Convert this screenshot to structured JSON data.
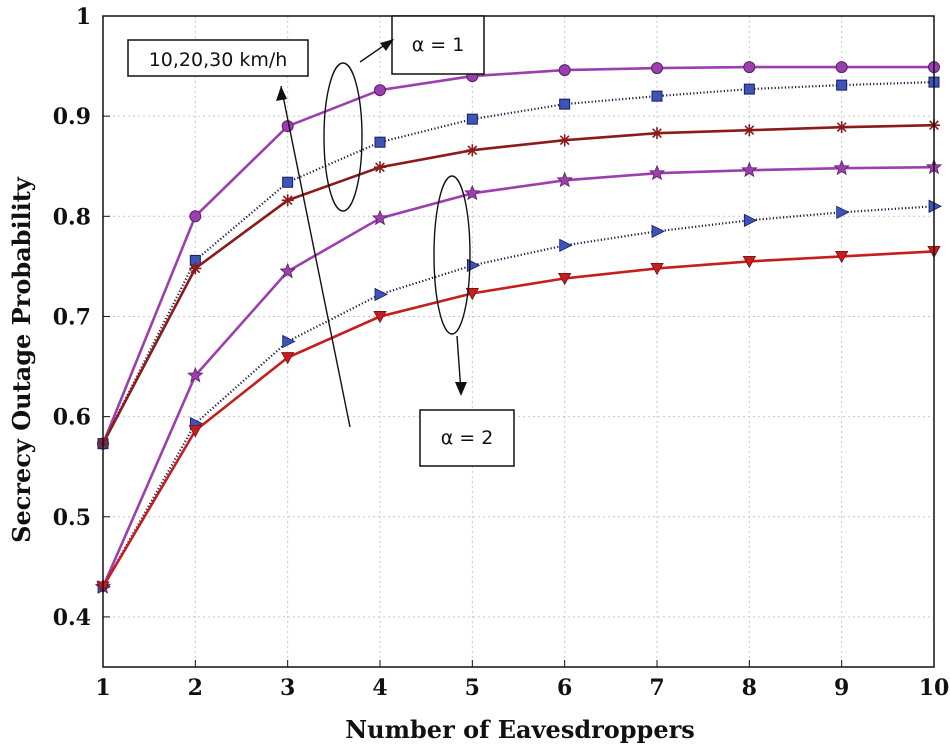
{
  "chart_data": {
    "type": "line",
    "title": "",
    "xlabel": "Number of Eavesdroppers",
    "ylabel": "Secrecy Outage Probability",
    "xlim": [
      1,
      10
    ],
    "ylim": [
      0.35,
      1.0
    ],
    "xticks": [
      1,
      2,
      3,
      4,
      5,
      6,
      7,
      8,
      9,
      10
    ],
    "yticks": [
      0.4,
      0.5,
      0.6,
      0.7,
      0.8,
      0.9,
      1.0
    ],
    "ytick_labels": [
      "0.4",
      "0.5",
      "0.6",
      "0.7",
      "0.8",
      "0.9",
      "1"
    ],
    "grid": true,
    "legend": "none",
    "x": [
      1,
      2,
      3,
      4,
      5,
      6,
      7,
      8,
      9,
      10
    ],
    "series": [
      {
        "group": "alpha1",
        "color": "#9b3fae",
        "marker": "circle",
        "dotted": false,
        "values": [
          0.573,
          0.8,
          0.89,
          0.926,
          0.94,
          0.946,
          0.948,
          0.949,
          0.949,
          0.949
        ]
      },
      {
        "group": "alpha1",
        "color": "#33338f",
        "marker": "square",
        "dotted": true,
        "values": [
          0.573,
          0.756,
          0.834,
          0.874,
          0.897,
          0.912,
          0.92,
          0.927,
          0.931,
          0.934
        ]
      },
      {
        "group": "alpha1",
        "color": "#8b1a1a",
        "marker": "asterisk",
        "dotted": false,
        "values": [
          0.573,
          0.748,
          0.816,
          0.849,
          0.866,
          0.876,
          0.883,
          0.886,
          0.889,
          0.891
        ]
      },
      {
        "group": "alpha2",
        "color": "#9b3fae",
        "marker": "star",
        "dotted": false,
        "values": [
          0.43,
          0.641,
          0.745,
          0.798,
          0.823,
          0.836,
          0.843,
          0.846,
          0.848,
          0.849
        ]
      },
      {
        "group": "alpha2",
        "color": "#33338f",
        "marker": "triangle-right",
        "dotted": true,
        "values": [
          0.43,
          0.593,
          0.675,
          0.722,
          0.751,
          0.771,
          0.785,
          0.796,
          0.804,
          0.81
        ]
      },
      {
        "group": "alpha2",
        "color": "#c41e1e",
        "marker": "triangle-down",
        "dotted": false,
        "values": [
          0.43,
          0.586,
          0.659,
          0.7,
          0.723,
          0.738,
          0.748,
          0.755,
          0.76,
          0.765
        ]
      }
    ],
    "annotations": {
      "speed": "10,20,30 km/h",
      "alpha1": "α = 1",
      "alpha2": "α = 2"
    }
  }
}
